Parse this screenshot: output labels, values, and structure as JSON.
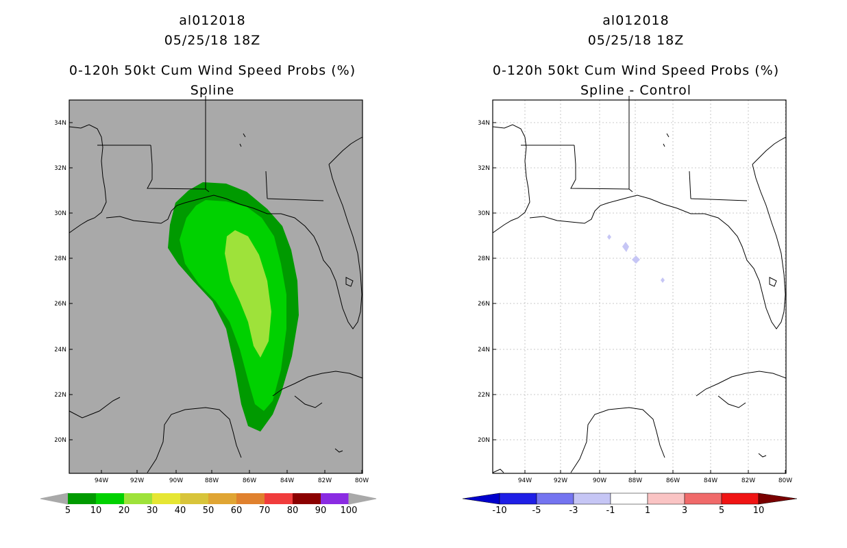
{
  "left_panel": {
    "title_lines": [
      "al012018",
      "05/25/18 18Z",
      "0-120h 50kt Cum Wind Speed Probs (%)",
      "Spline"
    ],
    "background": "#a9a9a9",
    "shading_colors": {
      "c5": "#009a00",
      "c10": "#00d100",
      "c20": "#9ee23a"
    },
    "colorbar": {
      "labels": [
        "5",
        "10",
        "20",
        "30",
        "40",
        "50",
        "60",
        "70",
        "80",
        "90",
        "100"
      ],
      "colors": [
        "#009a00",
        "#00d100",
        "#9ee23a",
        "#e6e633",
        "#d8c43a",
        "#e0a533",
        "#e0812e",
        "#f03c3c",
        "#8b0000",
        "#8a2be2"
      ]
    }
  },
  "right_panel": {
    "title_lines": [
      "al012018",
      "05/25/18 18Z",
      "0-120h 50kt Cum Wind Speed Probs (%)",
      "Spline - Control"
    ],
    "background": "#ffffff",
    "diff_color": "#c6c6f5",
    "colorbar": {
      "labels": [
        "-10",
        "-5",
        "-3",
        "-1",
        "1",
        "3",
        "5",
        "10"
      ],
      "colors": [
        "#0000cc",
        "#1f1fe6",
        "#7474f0",
        "#c6c6f5",
        "#ffffff",
        "#fac4c4",
        "#f06a6a",
        "#f01414",
        "#7a0000"
      ]
    }
  },
  "lat_labels": [
    "34N",
    "32N",
    "30N",
    "28N",
    "26N",
    "24N",
    "22N",
    "20N"
  ],
  "lon_labels": [
    "94W",
    "92W",
    "90W",
    "88W",
    "86W",
    "84W",
    "82W",
    "80W"
  ]
}
